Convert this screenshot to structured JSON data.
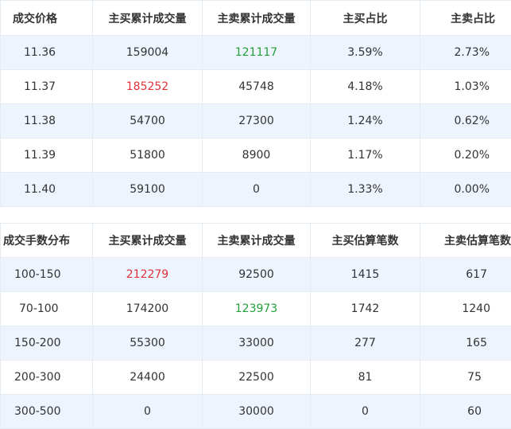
{
  "price_table": {
    "headers": [
      "成交价格",
      "主买累计成交量",
      "主卖累计成交量",
      "主买占比",
      "主卖占比"
    ],
    "rows": [
      {
        "price": "11.36",
        "buy_vol": "159004",
        "sell_vol": "121117",
        "buy_pct": "3.59%",
        "sell_pct": "2.73%",
        "sell_vol_color": "#22a03c"
      },
      {
        "price": "11.37",
        "buy_vol": "185252",
        "sell_vol": "45748",
        "buy_pct": "4.18%",
        "sell_pct": "1.03%",
        "buy_vol_color": "#e0313a"
      },
      {
        "price": "11.38",
        "buy_vol": "54700",
        "sell_vol": "27300",
        "buy_pct": "1.24%",
        "sell_pct": "0.62%"
      },
      {
        "price": "11.39",
        "buy_vol": "51800",
        "sell_vol": "8900",
        "buy_pct": "1.17%",
        "sell_pct": "0.20%"
      },
      {
        "price": "11.40",
        "buy_vol": "59100",
        "sell_vol": "0",
        "buy_pct": "1.33%",
        "sell_pct": "0.00%"
      }
    ]
  },
  "lot_table": {
    "headers": [
      "成交手数分布",
      "主买累计成交量",
      "主卖累计成交量",
      "主买估算笔数",
      "主卖估算笔数"
    ],
    "rows": [
      {
        "range": "100-150",
        "buy_vol": "212279",
        "sell_vol": "92500",
        "buy_count": "1415",
        "sell_count": "617",
        "buy_vol_color": "#e0313a"
      },
      {
        "range": "70-100",
        "buy_vol": "174200",
        "sell_vol": "123973",
        "buy_count": "1742",
        "sell_count": "1240",
        "sell_vol_color": "#22a03c"
      },
      {
        "range": "150-200",
        "buy_vol": "55300",
        "sell_vol": "33000",
        "buy_count": "277",
        "sell_count": "165"
      },
      {
        "range": "200-300",
        "buy_vol": "24400",
        "sell_vol": "22500",
        "buy_count": "81",
        "sell_count": "75"
      },
      {
        "range": "300-500",
        "buy_vol": "0",
        "sell_vol": "30000",
        "buy_count": "0",
        "sell_count": "60"
      }
    ]
  },
  "colors": {
    "zebra": "#eef4fd",
    "border": "#e4ebf3",
    "up": "#e0313a",
    "down": "#22a03c"
  }
}
